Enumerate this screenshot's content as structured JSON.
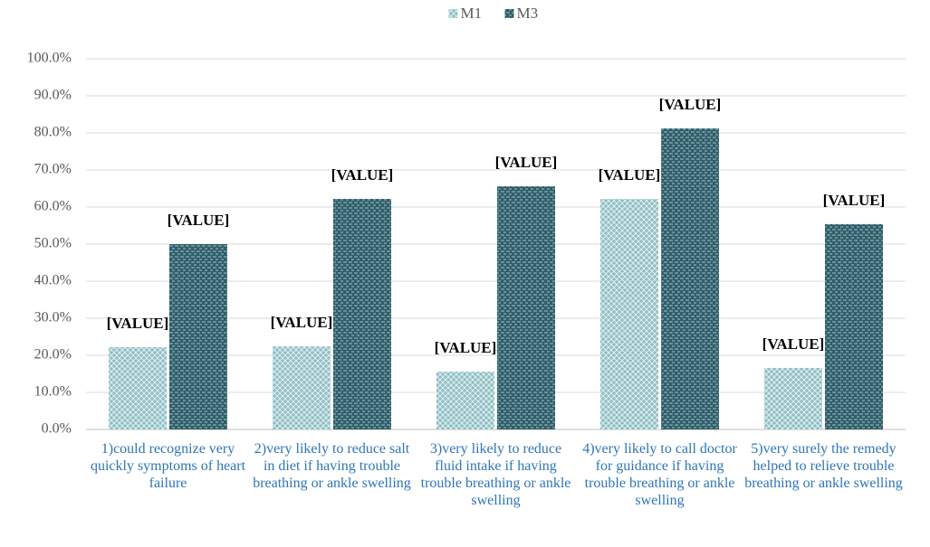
{
  "chart_data": {
    "type": "bar",
    "categories": [
      "1)could recognize very quickly symptoms of heart failure",
      "2)very likely to reduce salt in diet if having trouble breathing or ankle swelling",
      "3)very likely to reduce fluid intake if having trouble breathing or ankle swelling",
      "4)very likely to call doctor for guidance if having trouble breathing or ankle swelling",
      "5)very surely the remedy helped to relieve trouble breathing or ankle swelling"
    ],
    "series": [
      {
        "name": "M1",
        "color": "#8fbfc4",
        "values": [
          22.2,
          22.4,
          15.6,
          62.2,
          16.6
        ],
        "value_labels": [
          "[VALUE]",
          "[VALUE]",
          "[VALUE]",
          "[VALUE]",
          "[VALUE]"
        ]
      },
      {
        "name": "M3",
        "color": "#2d5f6b",
        "values": [
          50.0,
          62.2,
          65.6,
          81.2,
          55.4
        ],
        "value_labels": [
          "[VALUE]",
          "[VALUE]",
          "[VALUE]",
          "[VALUE]",
          "[VALUE]"
        ]
      }
    ],
    "ylim": [
      0,
      100
    ],
    "yticks": [
      {
        "value": 0,
        "label": "0.0%"
      },
      {
        "value": 10,
        "label": "10.0%"
      },
      {
        "value": 20,
        "label": "20.0%"
      },
      {
        "value": 30,
        "label": "30.0%"
      },
      {
        "value": 40,
        "label": "40.0%"
      },
      {
        "value": 50,
        "label": "50.0%"
      },
      {
        "value": 60,
        "label": "60.0%"
      },
      {
        "value": 70,
        "label": "70.0%"
      },
      {
        "value": 80,
        "label": "80.0%"
      },
      {
        "value": 90,
        "label": "90.0%"
      },
      {
        "value": 100,
        "label": "100.0%"
      }
    ],
    "grid": true,
    "legend": "top"
  }
}
